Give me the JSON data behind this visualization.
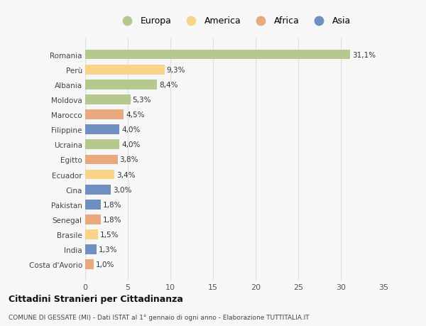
{
  "countries": [
    "Romania",
    "Perù",
    "Albania",
    "Moldova",
    "Marocco",
    "Filippine",
    "Ucraina",
    "Egitto",
    "Ecuador",
    "Cina",
    "Pakistan",
    "Senegal",
    "Brasile",
    "India",
    "Costa d'Avorio"
  ],
  "values": [
    31.1,
    9.3,
    8.4,
    5.3,
    4.5,
    4.0,
    4.0,
    3.8,
    3.4,
    3.0,
    1.8,
    1.8,
    1.5,
    1.3,
    1.0
  ],
  "labels": [
    "31,1%",
    "9,3%",
    "8,4%",
    "5,3%",
    "4,5%",
    "4,0%",
    "4,0%",
    "3,8%",
    "3,4%",
    "3,0%",
    "1,8%",
    "1,8%",
    "1,5%",
    "1,3%",
    "1,0%"
  ],
  "continents": [
    "Europa",
    "America",
    "Europa",
    "Europa",
    "Africa",
    "Asia",
    "Europa",
    "Africa",
    "America",
    "Asia",
    "Asia",
    "Africa",
    "America",
    "Asia",
    "Africa"
  ],
  "colors": {
    "Europa": "#b5c98e",
    "America": "#f7d488",
    "Africa": "#e8a97e",
    "Asia": "#6e8fc0"
  },
  "legend_order": [
    "Europa",
    "America",
    "Africa",
    "Asia"
  ],
  "title": "Cittadini Stranieri per Cittadinanza",
  "subtitle": "COMUNE DI GESSATE (MI) - Dati ISTAT al 1° gennaio di ogni anno - Elaborazione TUTTITALIA.IT",
  "xlim": [
    0,
    35
  ],
  "xticks": [
    0,
    5,
    10,
    15,
    20,
    25,
    30,
    35
  ],
  "plot_bg": "#f7f7f7",
  "fig_bg": "#f7f7f7",
  "grid_color": "#e0e0e0"
}
